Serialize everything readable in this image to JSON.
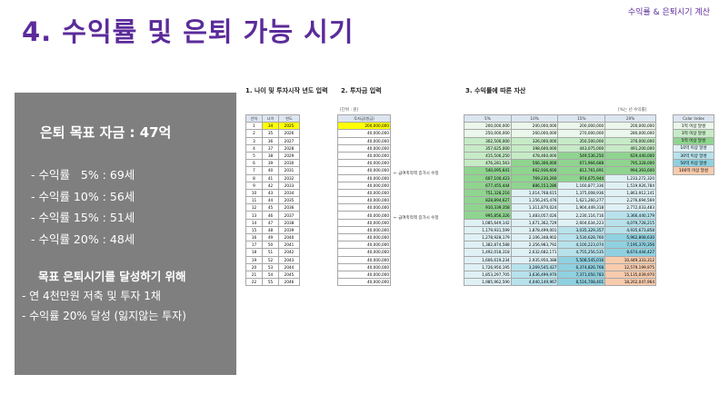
{
  "header": {
    "top_right": "수익률 & 은퇴시기 계산",
    "title": "4. 수익률 및 은퇴 가능 시기"
  },
  "summary": {
    "goal": "은퇴 목표 자금 : 47억",
    "rates": [
      " - 수익률   5% : 69세",
      " - 수익률 10% : 56세",
      " - 수익률 15% : 51세",
      " - 수익률 20% : 48세"
    ],
    "plan_title": "목표 은퇴시기를 달성하기 위해",
    "plan": [
      "- 연 4천만원 저축 및 투자 1채",
      "- 수익률 20% 달성 (잃지않는 투자)"
    ]
  },
  "sections": {
    "s1": "1. 나이 및 투자시작 년도 입력",
    "s2": "2. 투자금 입력",
    "s3": "3. 수익률에 따른 자산"
  },
  "units": {
    "won": "[단위 : 원]",
    "won2": "[%는 년 수익률]"
  },
  "table1": {
    "headers": [
      "년차",
      "나이",
      "연도"
    ],
    "rows": [
      [
        "1",
        "34",
        "2025"
      ],
      [
        "2",
        "35",
        "2026"
      ],
      [
        "3",
        "36",
        "2027"
      ],
      [
        "4",
        "37",
        "2028"
      ],
      [
        "5",
        "38",
        "2029"
      ],
      [
        "6",
        "39",
        "2030"
      ],
      [
        "7",
        "40",
        "2031"
      ],
      [
        "8",
        "41",
        "2032"
      ],
      [
        "9",
        "42",
        "2033"
      ],
      [
        "10",
        "43",
        "2034"
      ],
      [
        "11",
        "44",
        "2035"
      ],
      [
        "12",
        "45",
        "2036"
      ],
      [
        "13",
        "46",
        "2037"
      ],
      [
        "14",
        "47",
        "2038"
      ],
      [
        "15",
        "48",
        "2039"
      ],
      [
        "16",
        "49",
        "2040"
      ],
      [
        "17",
        "50",
        "2041"
      ],
      [
        "18",
        "51",
        "2042"
      ],
      [
        "19",
        "52",
        "2043"
      ],
      [
        "20",
        "53",
        "2044"
      ],
      [
        "21",
        "54",
        "2045"
      ],
      [
        "22",
        "55",
        "2046"
      ]
    ]
  },
  "table2": {
    "header": "투자금(원금)",
    "values": [
      "200,000,000",
      "40,000,000",
      "40,000,000",
      "40,000,000",
      "40,000,000",
      "40,000,000",
      "40,000,000",
      "40,000,000",
      "40,000,000",
      "40,000,000",
      "40,000,000",
      "40,000,000",
      "40,000,000",
      "40,000,000",
      "40,000,000",
      "40,000,000",
      "40,000,000",
      "40,000,000",
      "40,000,000",
      "40,000,000",
      "40,000,000",
      "40,000,000"
    ],
    "note1": "← 급여축적액 증가시 수정",
    "note2": "← 급여축적액 증가시 수정"
  },
  "table3": {
    "headers": [
      "5%",
      "10%",
      "15%",
      "20%"
    ],
    "rows": [
      [
        "200,000,000",
        "200,000,000",
        "200,000,000",
        "200,000,000"
      ],
      [
        "250,000,000",
        "260,000,000",
        "270,000,000",
        "280,000,000"
      ],
      [
        "302,500,000",
        "326,000,000",
        "350,500,000",
        "376,000,000"
      ],
      [
        "357,625,000",
        "398,600,000",
        "443,075,000",
        "491,200,000"
      ],
      [
        "415,506,250",
        "478,460,000",
        "549,536,250",
        "629,440,000"
      ],
      [
        "476,281,563",
        "566,306,000",
        "671,966,688",
        "795,328,000"
      ],
      [
        "540,095,641",
        "662,936,600",
        "812,761,691",
        "994,393,600"
      ],
      [
        "607,100,423",
        "769,230,260",
        "974,675,944",
        "1,233,272,320"
      ],
      [
        "677,455,444",
        "886,153,286",
        "1,160,877,336",
        "1,519,926,784"
      ],
      [
        "751,328,216",
        "1,014,768,615",
        "1,375,008,936",
        "1,863,912,141"
      ],
      [
        "828,894,627",
        "1,156,245,476",
        "1,621,260,277",
        "2,276,694,569"
      ],
      [
        "910,339,358",
        "1,311,870,024",
        "1,904,449,318",
        "2,772,033,483"
      ],
      [
        "995,856,326",
        "1,483,057,026",
        "2,230,116,716",
        "3,366,440,179"
      ],
      [
        "1,085,649,142",
        "1,671,362,729",
        "2,604,634,223",
        "4,079,728,215"
      ],
      [
        "1,179,931,599",
        "1,878,499,001",
        "3,035,329,357",
        "4,935,673,858"
      ],
      [
        "1,278,928,179",
        "2,106,348,902",
        "3,530,628,760",
        "5,962,808,630"
      ],
      [
        "1,382,874,588",
        "2,356,983,792",
        "4,100,223,074",
        "7,195,370,356"
      ],
      [
        "1,492,018,318",
        "2,632,682,171",
        "4,755,256,535",
        "8,674,444,427"
      ],
      [
        "1,606,619,234",
        "2,935,950,388",
        "5,508,545,016",
        "10,449,333,312"
      ],
      [
        "1,726,950,195",
        "3,269,545,427",
        "6,374,826,768",
        "12,579,199,975"
      ],
      [
        "1,853,297,705",
        "3,636,499,970",
        "7,371,050,783",
        "15,135,039,970"
      ],
      [
        "1,985,962,590",
        "4,040,149,967",
        "8,516,708,401",
        "18,202,047,964"
      ]
    ]
  },
  "color_index": {
    "header": "Color Index",
    "items": [
      "1억 이상 달성",
      "3억 이상 달성",
      "5억 이상 달성",
      "10억 이상 달성",
      "30억 이상 달성",
      "50억 이상 달성",
      "100억 이상 달성"
    ],
    "colors": [
      "#eaf7ea",
      "#c6ebc6",
      "#8fd48f",
      "#dff1f5",
      "#b7e2ec",
      "#8fd1e0",
      "#f8cbad"
    ]
  }
}
